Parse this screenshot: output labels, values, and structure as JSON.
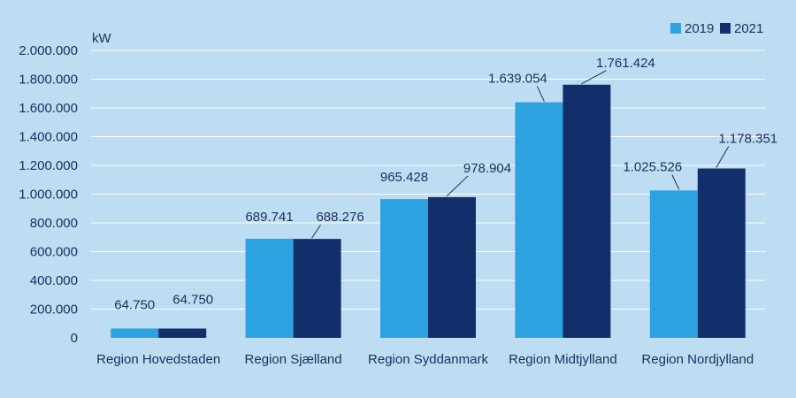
{
  "chart_data": {
    "type": "bar",
    "ylabel": "kW",
    "ylim": [
      0,
      2000000
    ],
    "yticks": [
      0,
      200000,
      400000,
      600000,
      800000,
      1000000,
      1200000,
      1400000,
      1600000,
      1800000,
      2000000
    ],
    "ytick_labels": [
      "0",
      "200.000",
      "400.000",
      "600.000",
      "800.000",
      "1.000.000",
      "1.200.000",
      "1.400.000",
      "1.600.000",
      "1.800.000",
      "2.000.000"
    ],
    "grid": true,
    "legend_position": "top-right",
    "categories": [
      "Region Hovedstaden",
      "Region Sjælland",
      "Region Syddanmark",
      "Region Midtjylland",
      "Region Nordjylland"
    ],
    "series": [
      {
        "name": "2019",
        "color": "#2ca3e0",
        "values": [
          64750,
          689741,
          965428,
          1639054,
          1025526
        ],
        "labels": [
          "64.750",
          "689.741",
          "965.428",
          "1.639.054",
          "1.025.526"
        ]
      },
      {
        "name": "2021",
        "color": "#132f6b",
        "values": [
          64750,
          688276,
          978904,
          1761424,
          1178351
        ],
        "labels": [
          "64.750",
          "688.276",
          "978.904",
          "1.761.424",
          "1.178.351"
        ]
      }
    ]
  }
}
